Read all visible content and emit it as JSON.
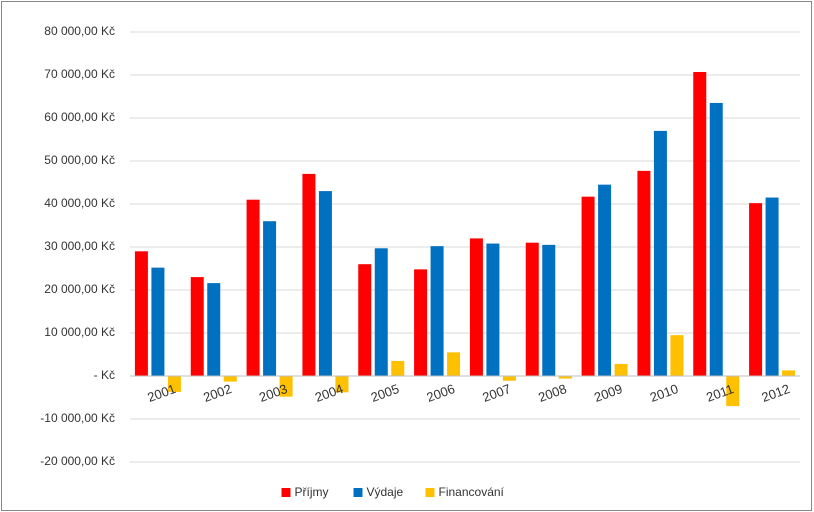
{
  "chart_data": {
    "type": "bar",
    "categories": [
      "2001",
      "2002",
      "2003",
      "2004",
      "2005",
      "2006",
      "2007",
      "2008",
      "2009",
      "2010",
      "2011",
      "2012"
    ],
    "series": [
      {
        "name": "Příjmy",
        "color": "#ff0000",
        "values": [
          29000,
          23000,
          41000,
          47000,
          26000,
          24800,
          32000,
          31000,
          41700,
          47700,
          70700,
          40200
        ]
      },
      {
        "name": "Výdaje",
        "color": "#0070c0",
        "values": [
          25200,
          21600,
          36000,
          43000,
          29700,
          30200,
          30800,
          30500,
          44500,
          57000,
          63500,
          41500
        ]
      },
      {
        "name": "Financování",
        "color": "#ffc000",
        "values": [
          -3700,
          -1300,
          -4800,
          -3800,
          3500,
          5500,
          -1100,
          -600,
          2800,
          9500,
          -7000,
          1300
        ]
      }
    ],
    "ylim": [
      -20000,
      80000
    ],
    "yticks": [
      {
        "value": -20000,
        "label": "-20 000,00 Kč"
      },
      {
        "value": -10000,
        "label": "-10 000,00 Kč"
      },
      {
        "value": 0,
        "label": "-   Kč"
      },
      {
        "value": 10000,
        "label": "10 000,00 Kč"
      },
      {
        "value": 20000,
        "label": "20 000,00 Kč"
      },
      {
        "value": 30000,
        "label": "30 000,00 Kč"
      },
      {
        "value": 40000,
        "label": "40 000,00 Kč"
      },
      {
        "value": 50000,
        "label": "50 000,00 Kč"
      },
      {
        "value": 60000,
        "label": "60 000,00 Kč"
      },
      {
        "value": 70000,
        "label": "70 000,00 Kč"
      },
      {
        "value": 80000,
        "label": "80 000,00 Kč"
      }
    ],
    "grid": true,
    "legend": "bottom"
  }
}
